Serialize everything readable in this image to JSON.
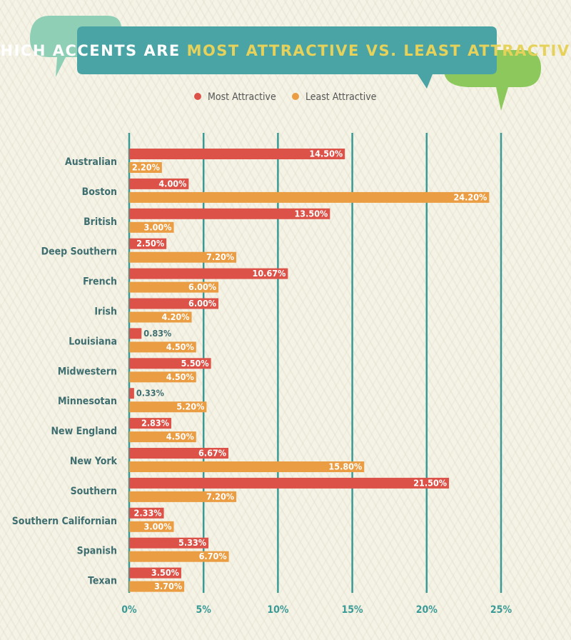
{
  "colors": {
    "most": "#dd5248",
    "least": "#eb9d43",
    "title_box": "#4aa4a5",
    "title_white": "#ffffff",
    "title_accent": "#e6d25a",
    "grid": "#3a9a96",
    "bubble_light": "#8ecfb6",
    "bubble_green": "#8cc85b"
  },
  "chart_data": {
    "type": "bar",
    "orientation": "horizontal",
    "title": "WHICH ACCENTS ARE MOST ATTRACTIVE VS. LEAST ATTRACTIVE?",
    "title_parts": [
      "WHICH ACCENTS ARE ",
      "MOST ATTRACTIVE VS. LEAST ATTRACTIVE?"
    ],
    "legend_position": "top-center",
    "xlim": [
      0,
      25
    ],
    "x_ticks": [
      0,
      5,
      10,
      15,
      20,
      25
    ],
    "x_tick_labels": [
      "0%",
      "5%",
      "10%",
      "15%",
      "20%",
      "25%"
    ],
    "grid": true,
    "categories": [
      "Australian",
      "Boston",
      "British",
      "Deep Southern",
      "French",
      "Irish",
      "Louisiana",
      "Midwestern",
      "Minnesotan",
      "New England",
      "New York",
      "Southern",
      "Southern Californian",
      "Spanish",
      "Texan"
    ],
    "series": [
      {
        "name": "Most Attractive",
        "values": [
          14.5,
          4.0,
          13.5,
          2.5,
          10.67,
          6.0,
          0.83,
          5.5,
          0.33,
          2.83,
          6.67,
          21.5,
          2.33,
          5.33,
          3.5
        ],
        "labels": [
          "14.50%",
          "4.00%",
          "13.50%",
          "2.50%",
          "10.67%",
          "6.00%",
          "0.83%",
          "5.50%",
          "0.33%",
          "2.83%",
          "6.67%",
          "21.50%",
          "2.33%",
          "5.33%",
          "3.50%"
        ]
      },
      {
        "name": "Least Attractive",
        "values": [
          2.2,
          24.2,
          3.0,
          7.2,
          6.0,
          4.2,
          4.5,
          4.5,
          5.2,
          4.5,
          15.8,
          7.2,
          3.0,
          6.7,
          3.7
        ],
        "labels": [
          "2.20%",
          "24.20%",
          "3.00%",
          "7.20%",
          "6.00%",
          "4.20%",
          "4.50%",
          "4.50%",
          "5.20%",
          "4.50%",
          "15.80%",
          "7.20%",
          "3.00%",
          "6.70%",
          "3.70%"
        ]
      }
    ]
  }
}
